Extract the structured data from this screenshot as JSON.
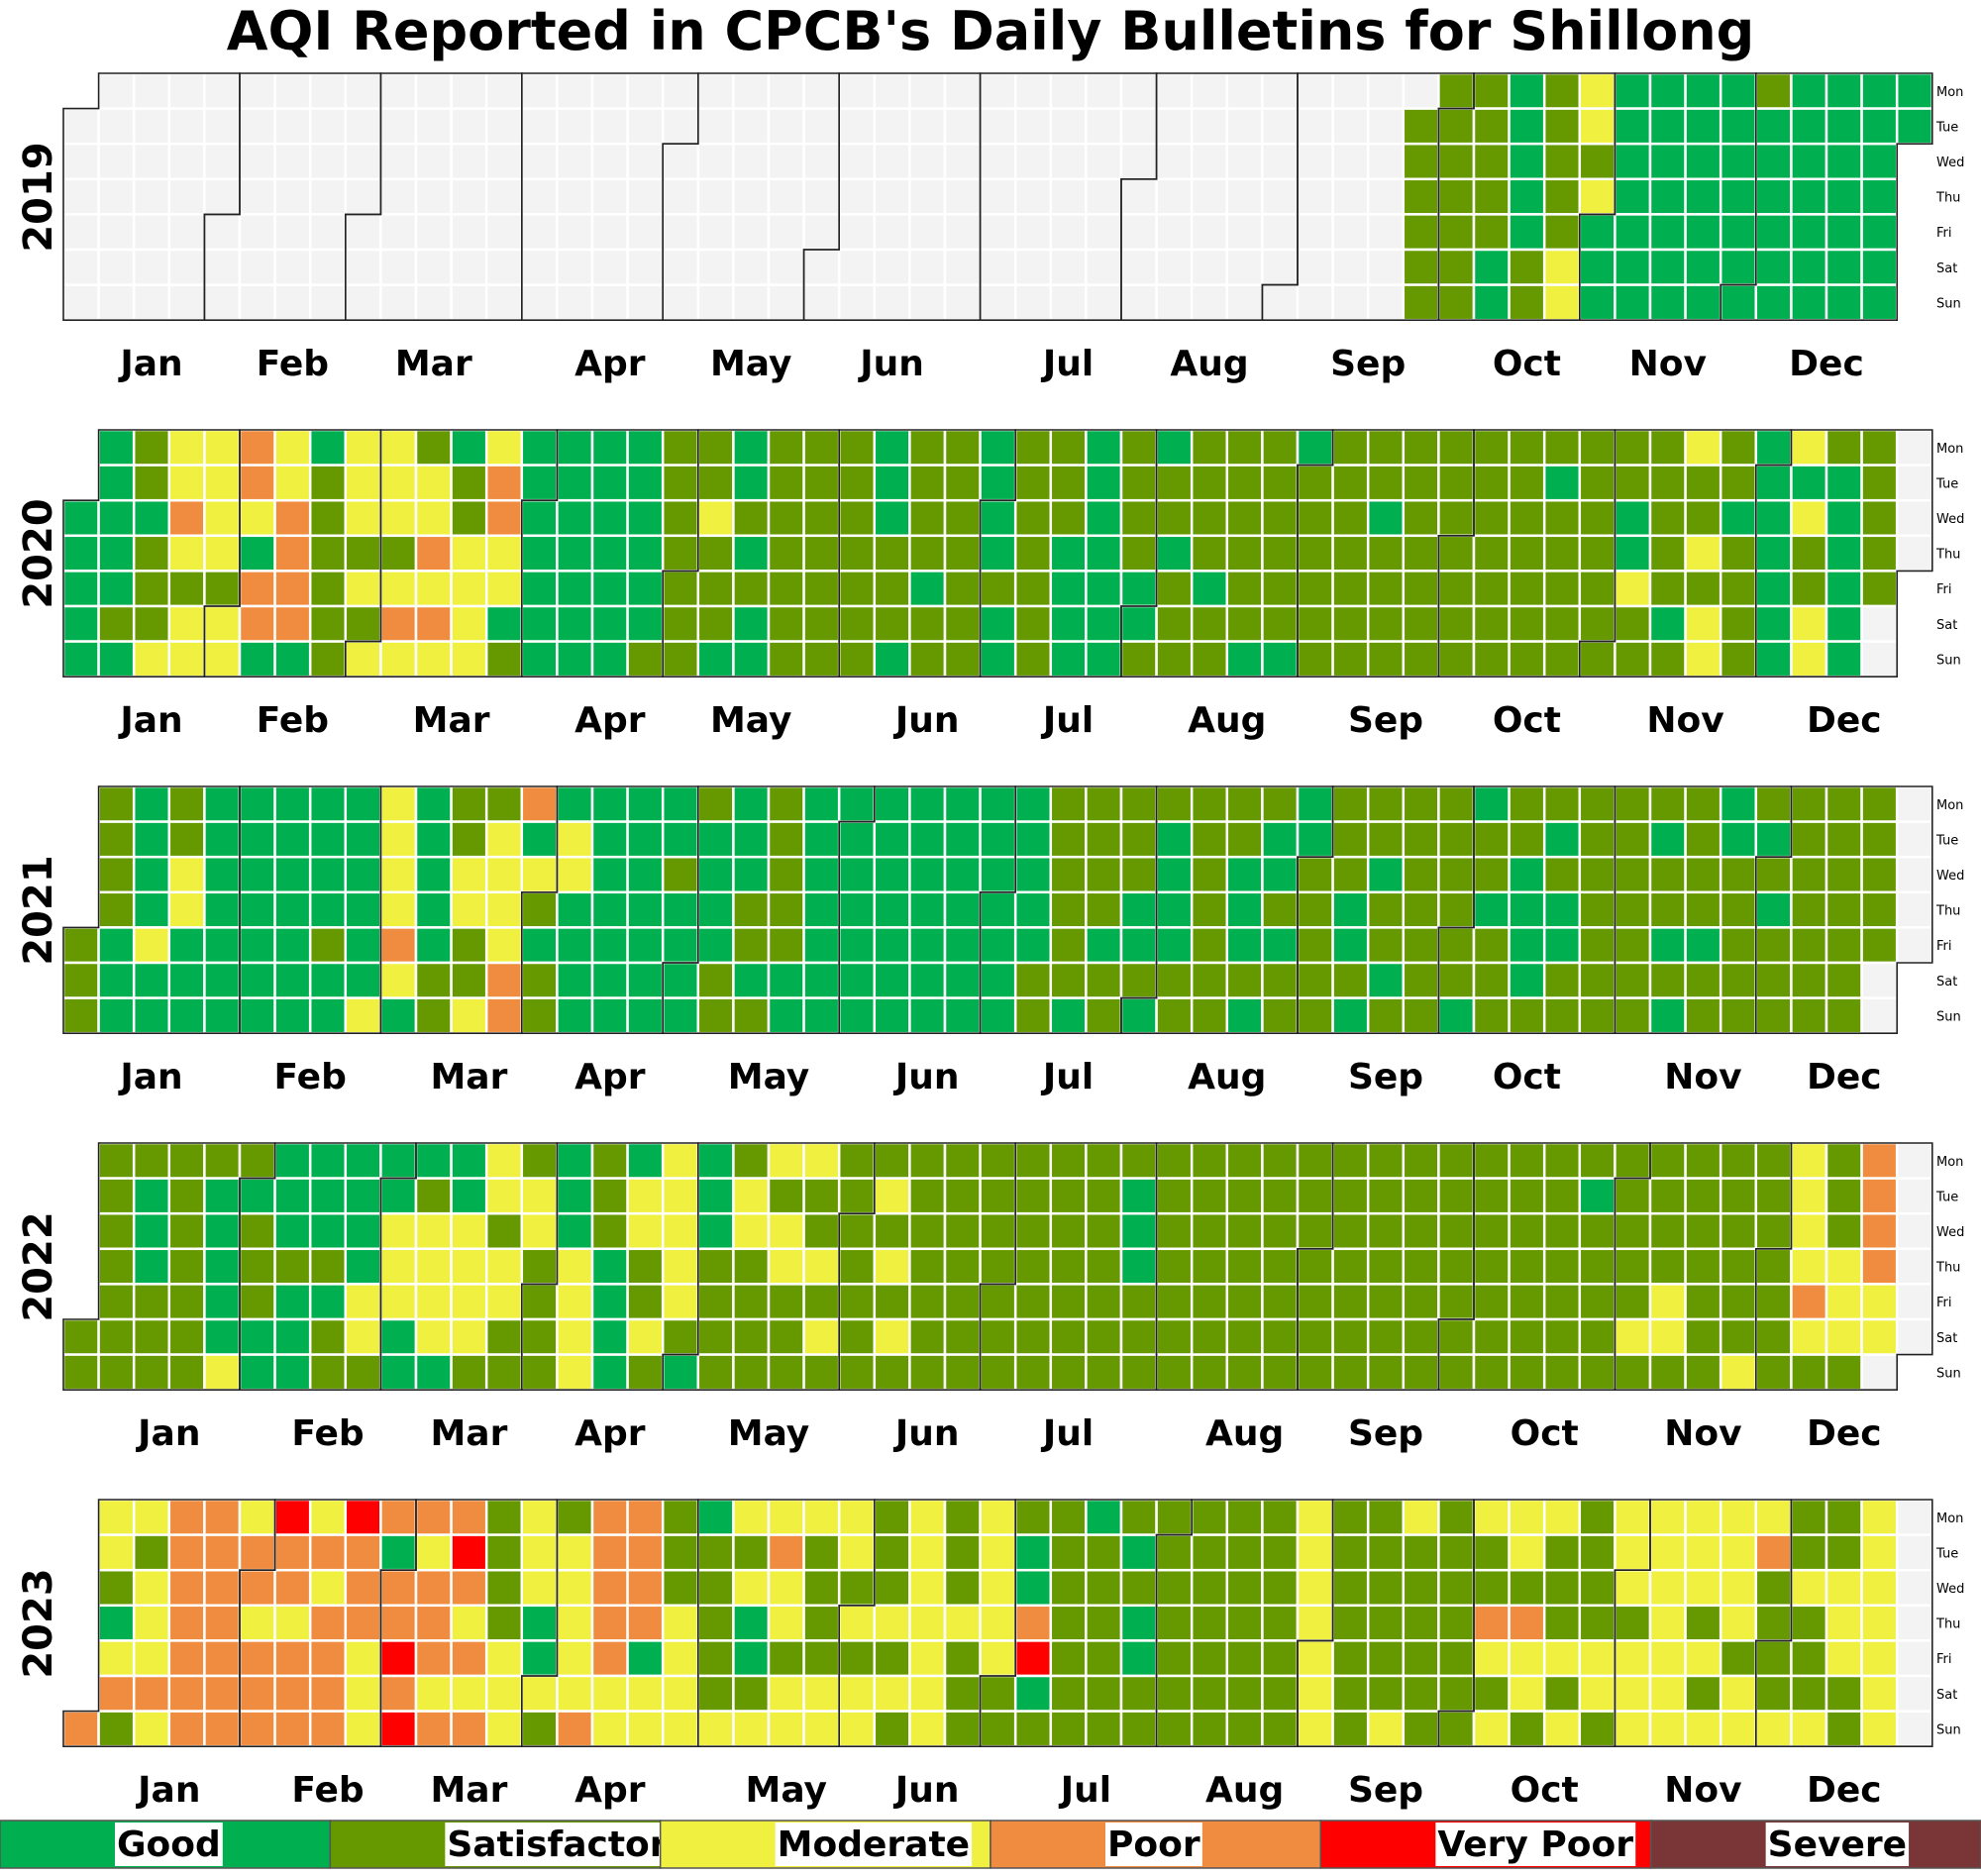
{
  "chart_data": {
    "type": "heatmap",
    "title": "AQI Reported in CPCB's Daily Bulletins for Shillong",
    "years": [
      "2019",
      "2020",
      "2021",
      "2022",
      "2023"
    ],
    "month_labels": [
      "Jan",
      "Feb",
      "Mar",
      "Apr",
      "May",
      "Jun",
      "Jul",
      "Aug",
      "Sep",
      "Oct",
      "Nov",
      "Dec"
    ],
    "weekday_labels": [
      "Mon",
      "Tue",
      "Wed",
      "Thu",
      "Fri",
      "Sat",
      "Sun"
    ],
    "categories": [
      "Good",
      "Satisfactory",
      "Moderate",
      "Poor",
      "Very Poor",
      "Severe"
    ],
    "category_colors": [
      "#00b050",
      "#669900",
      "#f0f040",
      "#f08c40",
      "#ff0000",
      "#7a3636"
    ],
    "no_data_color": "#f3f3f3",
    "legend_position": "bottom",
    "weekly_categories": {
      "2019": [
        "-------",
        "-------",
        "-------",
        "-------",
        "-------",
        "-------",
        "-------",
        "-------",
        "-------",
        "-------",
        "-------",
        "-------",
        "-------",
        "-------",
        "-------",
        "-------",
        "-------",
        "-------",
        "-------",
        "-------",
        "-------",
        "-------",
        "-------",
        "-------",
        "-------",
        "-------",
        "-------",
        "-------",
        "-------",
        "-------",
        "-------",
        "-------",
        "-------",
        "-------",
        "-------",
        "-------",
        "-------",
        "-------",
        "-------",
        "-------",
        "-------",
        "-------",
        "-------",
        "-------",
        "-------",
        "-------",
        "-------",
        "-------",
        "-------",
        "-------",
        "-------",
        "-------",
        "-------",
        "-------",
        "-------",
        "-------",
        "-------",
        "-------",
        "-------",
        "-------",
        "-------",
        "-------",
        "-------",
        "-------",
        "-------",
        "-------",
        "-------",
        "-------",
        "-------",
        "-------",
        "-------",
        "-------",
        "-------",
        "-------",
        "-------",
        "-------",
        "-------",
        "-------",
        "-------",
        "-------",
        "-------",
        "-------",
        "-------",
        "-------",
        "-------",
        "-------",
        "-------",
        "-------",
        "-------",
        "-------",
        "-------",
        "-------",
        "-------",
        "-------",
        "-------",
        "-------",
        "-------",
        "-------",
        "-------",
        "-------",
        "-------",
        "-------",
        "-------",
        "-------",
        "-------",
        "-------",
        "-------",
        "-------",
        "-------",
        "-------",
        "-------",
        "-------",
        "-------",
        "-------",
        "-------",
        "-------",
        "-------",
        "-------",
        "-------",
        "-------",
        "-------",
        "-------",
        "-------",
        "-------",
        "-------",
        "-------",
        "-------",
        "-------",
        "-------",
        "-------",
        "-------",
        "-------",
        "-------",
        "-------",
        "-------",
        "-------",
        "-------",
        "-------",
        "-------",
        "-------",
        "-------",
        "-------",
        "-------",
        "-------",
        "-------",
        "-------",
        "-------",
        "-------",
        "-------",
        "-------",
        "-------",
        "-------",
        "-------",
        "-------",
        "-------",
        "-------",
        "-------",
        "-------",
        "-------",
        "-------",
        "-------",
        "-------",
        "-------",
        "-------",
        "-------",
        "-------",
        "-------",
        "-------",
        "-------",
        "-------",
        "-------",
        "-------",
        "-------",
        "-------",
        "-------",
        "-------",
        "-------",
        "-------",
        "-------",
        "-------",
        "-------",
        "-------",
        "-------",
        "-------",
        "-------",
        "-------",
        "-------",
        "-------",
        "-------",
        "-------",
        "-------",
        "-------",
        "-------",
        "-------",
        "-------",
        "-------",
        "-------",
        "-------",
        "-------",
        "-------",
        "-------",
        "-------",
        "-------",
        "-------",
        "-------",
        "-------",
        "-------",
        "-------",
        "-------",
        "-------",
        "-------",
        "-------",
        "-------",
        "-------",
        "-------",
        "-------",
        "-------",
        "-------",
        "-------",
        "-------",
        "-------",
        "-------",
        "-------",
        "-------",
        "-------",
        "-------",
        "-------",
        "-------",
        "-------",
        "-------",
        "-------",
        "-------",
        "-------",
        "-------",
        "-------",
        "-------",
        "-------",
        "-------",
        "-------",
        "-------",
        "-------",
        "-------",
        "-------",
        "-------",
        "-------",
        "-------",
        "-------",
        "-------",
        "-------",
        "-------",
        "-------",
        "-------",
        "-------",
        "-------",
        "-------",
        "-------",
        "-------",
        "-------",
        "-------",
        "-------",
        "-------",
        "-------",
        "-------",
        "-------",
        "-------",
        "-------",
        "-------",
        "-------",
        "-------",
        "-------",
        "-------",
        "-------",
        "-------",
        "-------",
        "-------",
        "-------",
        "-------",
        "-------",
        "-------",
        "-------",
        "-------",
        "-------",
        "-------",
        "-------",
        "-------",
        "-------",
        "-------",
        "-------",
        "-------",
        "-------",
        "-------",
        "-------",
        "-------",
        "-------",
        "-------",
        "-------",
        "-------",
        "-------",
        "-------",
        "-------",
        "-------",
        "-------",
        "-------",
        "-------",
        "-------",
        "-------",
        "-------",
        "-------",
        "-------",
        "-------",
        "-------",
        "-------",
        "-------",
        "-------",
        "-------",
        "-------",
        "-------",
        "-------",
        "-------",
        "-------",
        "-------",
        "-------",
        "-------",
        "-------",
        "-------",
        "-------",
        "-------",
        "-------",
        "-------",
        "-------",
        "-------",
        "-------",
        "-------",
        "-------",
        "-------",
        "-------",
        "-------",
        "-------",
        "-------",
        "-------",
        "-------",
        "-------",
        "-------",
        "-------",
        "-------",
        "-------",
        "-------",
        "-------",
        "-------",
        "-------",
        "-------",
        "-------",
        "-------",
        "-------",
        "-------",
        "-------",
        "-------",
        "-------",
        "-------",
        "-------",
        "-------",
        "-------",
        "-------",
        "-------",
        "-------",
        "-------",
        "-------",
        "-------",
        "-------",
        "-------",
        "-------",
        "-------",
        "-------",
        "-------",
        "-------",
        "-------",
        "-------",
        "-------",
        "-------",
        "-------",
        "-------",
        "-------",
        "-------",
        "-------",
        "-------",
        "-------",
        "-------",
        "-------",
        "-------",
        "-------",
        "-------",
        "-------",
        "-------",
        "-------",
        "-------",
        "-------",
        "-------",
        "-------",
        "-------",
        "-------",
        "-------",
        "-------",
        "-------",
        "-------",
        "-------",
        "-------",
        "-------",
        "-------",
        "-------",
        "-------",
        "-------",
        "-------",
        "-------",
        "-------",
        "-------",
        "-------",
        "-------",
        "-------",
        "-------",
        "-------",
        "-------",
        "-------",
        "-------",
        "-------",
        "-------",
        "-------",
        "-------",
        "-------",
        "-------",
        "-------",
        "-------",
        "-------",
        "-------",
        "-------",
        "-------",
        "-------",
        "-------",
        "-------",
        "-------",
        "-------",
        "-------",
        "-------",
        "-------",
        "-------",
        "-------",
        "-------",
        "-------",
        "-------",
        "-------",
        "-------",
        "-------",
        "-------",
        "-------",
        "-------",
        "-------",
        "-------",
        "-------",
        "-------",
        "-------",
        "-------",
        "-------",
        "-------",
        "-------",
        "-------",
        "-------",
        "-------",
        "-------",
        "-------",
        "-------",
        "-------",
        "-------",
        "-------",
        "-------",
        "-------",
        "-------",
        "-------",
        "-------",
        "-------",
        "-------",
        "-------",
        "-------",
        "-------",
        "-------",
        "-------",
        "-------",
        "-------",
        "-------",
        "-------",
        "-------",
        "-------",
        "-------",
        "-------",
        "-------",
        "-------",
        "-------",
        "-------",
        "-------",
        "-------",
        "-------",
        "-------",
        "-------",
        "-------",
        "-------",
        "-------",
        "-------",
        "-------",
        "-------",
        "-------",
        "-------",
        "-------",
        "-------",
        "-------",
        "-------",
        "-------",
        "-------",
        "-------",
        "-------",
        "-------",
        "-------",
        "-------",
        "-------",
        "-------",
        "-------",
        "-------",
        "-------",
        "-------",
        "-------",
        "-------",
        "-------",
        "-------"
      ],
      "2019_weeks": [
        "-------",
        "-------",
        "-------",
        "-------",
        "-------",
        "-------",
        "-------",
        "-------",
        "-------",
        "-------",
        "-------",
        "-------",
        "-------",
        "-------",
        "-------",
        "-------",
        "-------",
        "-------",
        "-------",
        "-------",
        "-------",
        "-------",
        "-------",
        "-------",
        "-------",
        "-------",
        "-------",
        "-------",
        "-------",
        "-------",
        "-------",
        "-------",
        "-------",
        "-------",
        "-------",
        "-------",
        "-------",
        "-------",
        "-SSSSSS",
        "SSSSSSS",
        "SSSSSGG",
        "GGGGGSS",
        "SSSSSMM",
        "MMSMGGG",
        "GGGGGGG",
        "GGGGGGG",
        "GGGGGGG",
        "GGGGGGG",
        "SGGGGGG",
        "GGGGGGG",
        "GGGGGGG",
        "GGGGGGG",
        "GG-----"
      ]
    },
    "weeks": {
      "2019": [
        "-------",
        "-------",
        "-------",
        "-------",
        "-------",
        "-------",
        "-------",
        "-------",
        "-------",
        "-------",
        "-------",
        "-------",
        "-------",
        "-------",
        "-------",
        "-------",
        "-------",
        "-------",
        "-------",
        "-------",
        "-------",
        "-------",
        "-------",
        "-------",
        "-------",
        "-------",
        "-------",
        "-------",
        "-------",
        "-------",
        "-------",
        "-------",
        "-------",
        "-------",
        "-------",
        "-------",
        "-------",
        "-------",
        "-SSSSSS",
        "SSSSSSS",
        "SSSSSGG",
        "GGGGGSS",
        "SSSSSMM",
        "MMSMGGG",
        "GGGGGGG",
        "GGGGGGG",
        "GGGGGGG",
        "GGGGGGG",
        "SGGGGGG",
        "GGGGGGG",
        "GGGGGGG",
        "GGGGGGG",
        "GG-----"
      ],
      "2020": [
        "--GGGGG",
        "GGGGGSG",
        "SSGSSSM",
        "MMPMSMM",
        "MMMMSMM",
        "PPMGPPG",
        "MMPPPPG",
        "GSSSSSS",
        "MMMSMSM",
        "MMMSMPM",
        "SMMPMPM",
        "GSSMMMM",
        "MPPMMGS",
        "GGGGGGG",
        "GGGGGGG",
        "GGGGGGG",
        "GGGGGGS",
        "SSSSSSS",
        "SSMSSSG",
        "GGSGSGG",
        "SSSSSSS",
        "SSSSSSS",
        "SSSSSSS",
        "GGGSSSG",
        "SSSSGSS",
        "SSSSSSS",
        "GGGGSGG",
        "SSSSSSS",
        "SSSGGGG",
        "GGGGGGG",
        "SSSSGGS",
        "GSSGSSS",
        "SSSSGSS",
        "SSSSSSG",
        "SSSSSSG",
        "GSSSSSS",
        "SSSSSSS",
        "SSGSSSS",
        "SSSSSSS",
        "SSSSSSS",
        "SSSSSSS",
        "SSSSSSS",
        "SGSSSSS",
        "SSSSSSS",
        "SSGGMSS",
        "SSSSSGS",
        "MSSMSMM",
        "SSGSSSS",
        "GGGGGGG",
        "MGMSSMM",
        "SGGGGGG",
        "SSSSS--"
      ],
      "2021": [
        "----SSS",
        "SSSSGGG",
        "GGGGMGG",
        "SSMMGGG",
        "GGGGGGG",
        "GGGGGGG",
        "GGGGGGG",
        "GGGGSGG",
        "GGGGGGM",
        "MMMMPMG",
        "GGGGGSS",
        "SSMMSSM",
        "SMMMMPP",
        "PGMSGSS",
        "GMMGGGG",
        "GGGGGGG",
        "GGGGGGG",
        "GGSGGGG",
        "SGGGGSS",
        "GGGSSGS",
        "SSSSSGG",
        "GGGGGGG",
        "GGGGGGG",
        "GGGGGGG",
        "GGGGGGG",
        "GGGGGGG",
        "GGGGGGG",
        "GGGGGSS",
        "SSSSSSG",
        "SSSSGSS",
        "SSSGGSG",
        "SGGGGSS",
        "SSSSSSS",
        "SSGGGSG",
        "SGGSGSS",
        "GGSSSSS",
        "SSSGGSG",
        "SSGSSGS",
        "SSSSSSS",
        "SSSSSSG",
        "GSSGSSS",
        "SSGGGGS",
        "SGSGGSS",
        "SSSSSSS",
        "SSSSSSS",
        "SGSSGSG",
        "SSSSGSS",
        "GGSSSSS",
        "SGSGSSS",
        "SSSSSSS",
        "SSSSSSS",
        "SSSSS--"
      ],
      "2022": [
        "-----SS",
        "SSSSSSS",
        "SGGGSSS",
        "SSSSSSS",
        "SGGGGGM",
        "SGSSSGG",
        "GGGSGGG",
        "GGGSGSS",
        "GGGGMMS",
        "GGMMMGG",
        "GSMMMMG",
        "GGMMMMS",
        "MMSMMSS",
        "SMMSSSS",
        "GGGMMMM",
        "SSSGGGG",
        "GMMSSMS",
        "MMMMMSG",
        "GGGSSSS",
        "SMMSSSS",
        "MSMMSSS",
        "MSSMSMS",
        "SSSSSSS",
        "SMSMSMS",
        "SSSSSSS",
        "SSSSSSS",
        "SSSSSSS",
        "SSSSSSS",
        "SSSSSSS",
        "SSSSSSS",
        "SGGGSSS",
        "SSSSSSS",
        "SSSSSSS",
        "SSSSSSS",
        "SSSSSSS",
        "SSSSSSS",
        "SSSSSSS",
        "SSSSSSS",
        "SSSSSSS",
        "SSSSSSS",
        "SSSSSSS",
        "SSSSSSS",
        "SSSSSSS",
        "SGSSSSS",
        "SSSSSMS",
        "SSSSMMS",
        "SSSSSSS",
        "SSSSSSM",
        "SSSSSSS",
        "MMMMPMS",
        "SSSMMMS",
        "PPPPMM-"
      ],
      "2023": [
        "------P",
        "MMSGMPS",
        "MSMMMPM",
        "PPPPPPP",
        "PPPPPPP",
        "MPPMPPP",
        "VPPMPPP",
        "MPMPPPP",
        "VPPPMMM",
        "PGPPVPV",
        "PMPPPMP",
        "PVPMPMP",
        "SSSSMMM",
        "MMMGGMS",
        "SMMMMMP",
        "PPPPPMM",
        "PPPPGMM",
        "SSSMMMM",
        "GSSSSSM",
        "MSMGGSM",
        "MPMMSMM",
        "MSSSSMM",
        "MMSMSMM",
        "SSSMSMS",
        "MMMMMMM",
        "SSSMSSS",
        "MMMMMSS",
        "SGGPVGS",
        "SSSSSSS",
        "GSSSSSS",
        "SGSGGSS",
        "SSSSSSS",
        "SSSSSSS",
        "SSSSSSS",
        "SSSSSSS",
        "MMMMMMM",
        "SSSSSSS",
        "SSSSSSM",
        "MSSSSSS",
        "SSSSSSS",
        "MSSPMSM",
        "MMSPMMS",
        "MSSSMSM",
        "SSSSMMS",
        "MMMSMMM",
        "MMMMMMM",
        "MMMSMSM",
        "MMMMSMM",
        "MPSSSSM",
        "SSMSSSM",
        "SSMMMSS",
        "MMMMMMM"
      ]
    }
  }
}
